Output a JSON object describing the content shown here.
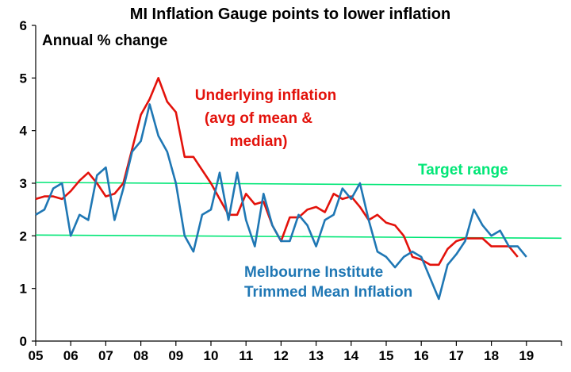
{
  "chart_data": {
    "type": "line",
    "title": "MI Inflation Gauge points to lower inflation",
    "ylabel": "Annual % change",
    "xlabel": "",
    "ylim": [
      0,
      6
    ],
    "xlim": [
      2005,
      2020
    ],
    "yticks": [
      "0",
      "1",
      "2",
      "3",
      "4",
      "5",
      "6"
    ],
    "xticks": [
      "05",
      "06",
      "07",
      "08",
      "09",
      "10",
      "11",
      "12",
      "13",
      "14",
      "15",
      "16",
      "17",
      "18",
      "19"
    ],
    "grid": false,
    "legend": "none",
    "annotations": {
      "underlying": [
        "Underlying inflation",
        "(avg of mean &",
        "median)"
      ],
      "melbourne": [
        "Melbourne Institute",
        "Trimmed Mean Inflation"
      ],
      "target": "Target range"
    },
    "colors": {
      "underlying": "#e3120b",
      "melbourne": "#1f77b4",
      "target": "#00e676",
      "axis": "#000000"
    },
    "target_band": [
      2,
      3
    ],
    "series": [
      {
        "key": "underlying",
        "x": [
          2005.0,
          2005.25,
          2005.5,
          2005.75,
          2006.0,
          2006.25,
          2006.5,
          2006.75,
          2007.0,
          2007.25,
          2007.5,
          2007.75,
          2008.0,
          2008.25,
          2008.5,
          2008.75,
          2009.0,
          2009.25,
          2009.5,
          2009.75,
          2010.0,
          2010.25,
          2010.5,
          2010.75,
          2011.0,
          2011.25,
          2011.5,
          2011.75,
          2012.0,
          2012.25,
          2012.5,
          2012.75,
          2013.0,
          2013.25,
          2013.5,
          2013.75,
          2014.0,
          2014.25,
          2014.5,
          2014.75,
          2015.0,
          2015.25,
          2015.5,
          2015.75,
          2016.0,
          2016.25,
          2016.5,
          2016.75,
          2017.0,
          2017.25,
          2017.5,
          2017.75,
          2018.0,
          2018.25,
          2018.5,
          2018.75
        ],
        "values": [
          2.7,
          2.75,
          2.75,
          2.7,
          2.85,
          3.05,
          3.2,
          3.0,
          2.75,
          2.8,
          3.0,
          3.65,
          4.3,
          4.6,
          5.0,
          4.55,
          4.35,
          3.5,
          3.5,
          3.25,
          3.0,
          2.7,
          2.4,
          2.4,
          2.8,
          2.6,
          2.65,
          2.2,
          1.9,
          2.35,
          2.35,
          2.5,
          2.55,
          2.45,
          2.8,
          2.7,
          2.75,
          2.55,
          2.3,
          2.4,
          2.25,
          2.2,
          2.0,
          1.6,
          1.55,
          1.45,
          1.45,
          1.75,
          1.9,
          1.95,
          1.95,
          1.95,
          1.8,
          1.8,
          1.8,
          1.6
        ]
      },
      {
        "key": "melbourne",
        "x": [
          2005.0,
          2005.25,
          2005.5,
          2005.75,
          2006.0,
          2006.25,
          2006.5,
          2006.75,
          2007.0,
          2007.25,
          2007.5,
          2007.75,
          2008.0,
          2008.25,
          2008.5,
          2008.75,
          2009.0,
          2009.25,
          2009.5,
          2009.75,
          2010.0,
          2010.25,
          2010.5,
          2010.75,
          2011.0,
          2011.25,
          2011.5,
          2011.75,
          2012.0,
          2012.25,
          2012.5,
          2012.75,
          2013.0,
          2013.25,
          2013.5,
          2013.75,
          2014.0,
          2014.25,
          2014.5,
          2014.75,
          2015.0,
          2015.25,
          2015.5,
          2015.75,
          2016.0,
          2016.25,
          2016.5,
          2016.75,
          2017.0,
          2017.25,
          2017.5,
          2017.75,
          2018.0,
          2018.25,
          2018.5,
          2018.75,
          2019.0
        ],
        "values": [
          2.4,
          2.5,
          2.9,
          3.0,
          2.0,
          2.4,
          2.3,
          3.15,
          3.3,
          2.3,
          2.9,
          3.6,
          3.8,
          4.5,
          3.9,
          3.6,
          3.0,
          2.0,
          1.7,
          2.4,
          2.5,
          3.2,
          2.3,
          3.2,
          2.3,
          1.8,
          2.8,
          2.2,
          1.9,
          1.9,
          2.4,
          2.2,
          1.8,
          2.3,
          2.4,
          2.9,
          2.7,
          3.0,
          2.3,
          1.7,
          1.6,
          1.4,
          1.6,
          1.7,
          1.6,
          1.2,
          0.8,
          1.45,
          1.65,
          1.9,
          2.5,
          2.2,
          2.0,
          2.1,
          1.8,
          1.8,
          1.6
        ]
      }
    ]
  }
}
